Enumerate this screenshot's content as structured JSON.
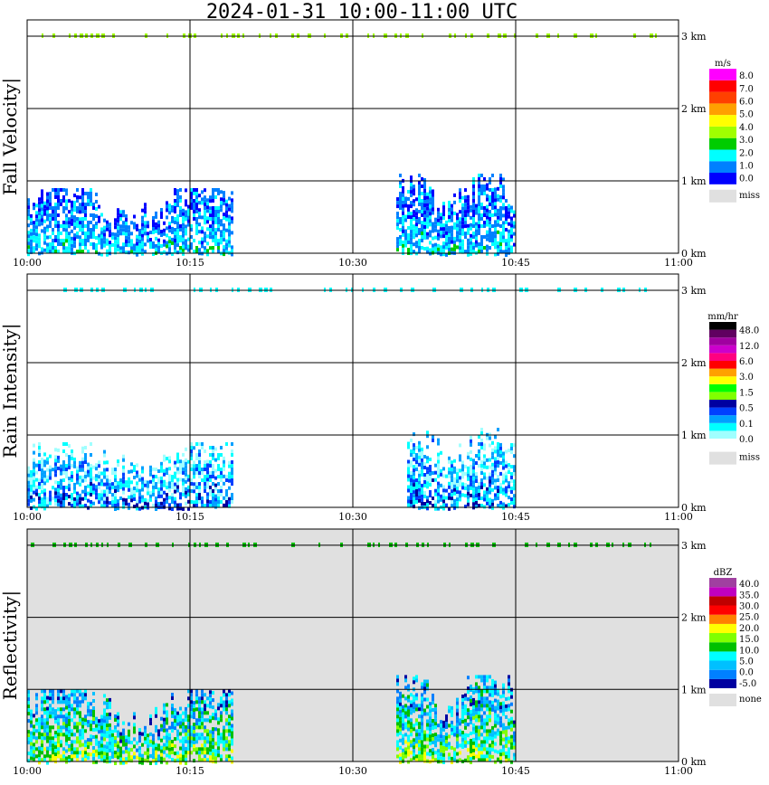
{
  "title": "2024-01-31   10:00-11:00 UTC",
  "x_tick_labels": [
    "10:00",
    "10:15",
    "10:30",
    "10:45",
    "11:00"
  ],
  "y_tick_labels": [
    "0 km",
    "1 km",
    "2 km",
    "3 km"
  ],
  "colors": {
    "fall_velocity": [
      "#0000ff",
      "#0080ff",
      "#00ffff",
      "#00cc00",
      "#a0ff00",
      "#ffff00",
      "#ffa000",
      "#ff4000",
      "#ff0000",
      "#ff00ff"
    ],
    "rain_intensity": [
      "#ffffff",
      "#a0ffff",
      "#00ffff",
      "#00a0ff",
      "#0040ff",
      "#0000a0",
      "#80ff00",
      "#00ff00",
      "#ffff00",
      "#ffa000",
      "#ff0000",
      "#ff0080",
      "#cc00cc",
      "#a000a0",
      "#600060",
      "#000000"
    ],
    "reflectivity": [
      "#0000a0",
      "#0080ff",
      "#00c0ff",
      "#00ffff",
      "#00c000",
      "#80ff00",
      "#ffff00",
      "#ff8000",
      "#ff0000",
      "#c00000",
      "#c000c0",
      "#a040a0"
    ],
    "missing": "#e0e0e0"
  },
  "chart_data": [
    {
      "type": "heatmap",
      "ylabel": "Fall Velocity",
      "colorbar": {
        "unit": "m/s",
        "labels": [
          "8.0",
          "7.0",
          "6.0",
          "5.0",
          "4.0",
          "3.0",
          "2.0",
          "1.0",
          "0.0"
        ],
        "missing_label": "miss"
      },
      "xlim": [
        "10:00",
        "11:00"
      ],
      "ylim_km": [
        0,
        3.2
      ],
      "background": "white",
      "echo_regions": [
        {
          "start": "10:00",
          "end": "10:19",
          "top_km": 0.9,
          "typical_value": "0.0-3.0"
        },
        {
          "start": "10:34",
          "end": "10:45",
          "top_km": 1.1,
          "typical_value": "0.0-3.0"
        }
      ],
      "top_layer_km": 3.0
    },
    {
      "type": "heatmap",
      "ylabel": "Rain Intensity",
      "colorbar": {
        "unit": "mm/hr",
        "labels": [
          "48.0",
          "12.0",
          "6.0",
          "3.0",
          "1.5",
          "0.5",
          "0.1",
          "0.0"
        ],
        "missing_label": "miss"
      },
      "xlim": [
        "10:00",
        "11:00"
      ],
      "ylim_km": [
        0,
        3.2
      ],
      "background": "white",
      "echo_regions": [
        {
          "start": "10:00",
          "end": "10:19",
          "top_km": 0.9,
          "typical_value": "0.0-0.5"
        },
        {
          "start": "10:35",
          "end": "10:45",
          "top_km": 1.1,
          "typical_value": "0.1-1.5"
        }
      ],
      "top_layer_km": 3.0
    },
    {
      "type": "heatmap",
      "ylabel": "Reflectivity",
      "colorbar": {
        "unit": "dBZ",
        "labels": [
          "40.0",
          "35.0",
          "30.0",
          "25.0",
          "20.0",
          "15.0",
          "10.0",
          "5.0",
          "0.0",
          "-5.0"
        ],
        "missing_label": "none"
      },
      "xlim": [
        "10:00",
        "11:00"
      ],
      "ylim_km": [
        0,
        3.2
      ],
      "background": "gray",
      "echo_regions": [
        {
          "start": "10:00",
          "end": "10:19",
          "top_km": 1.0,
          "typical_value": "0.0-20.0"
        },
        {
          "start": "10:34",
          "end": "10:45",
          "top_km": 1.2,
          "typical_value": "0.0-20.0"
        }
      ],
      "top_layer_km": 3.0
    }
  ]
}
